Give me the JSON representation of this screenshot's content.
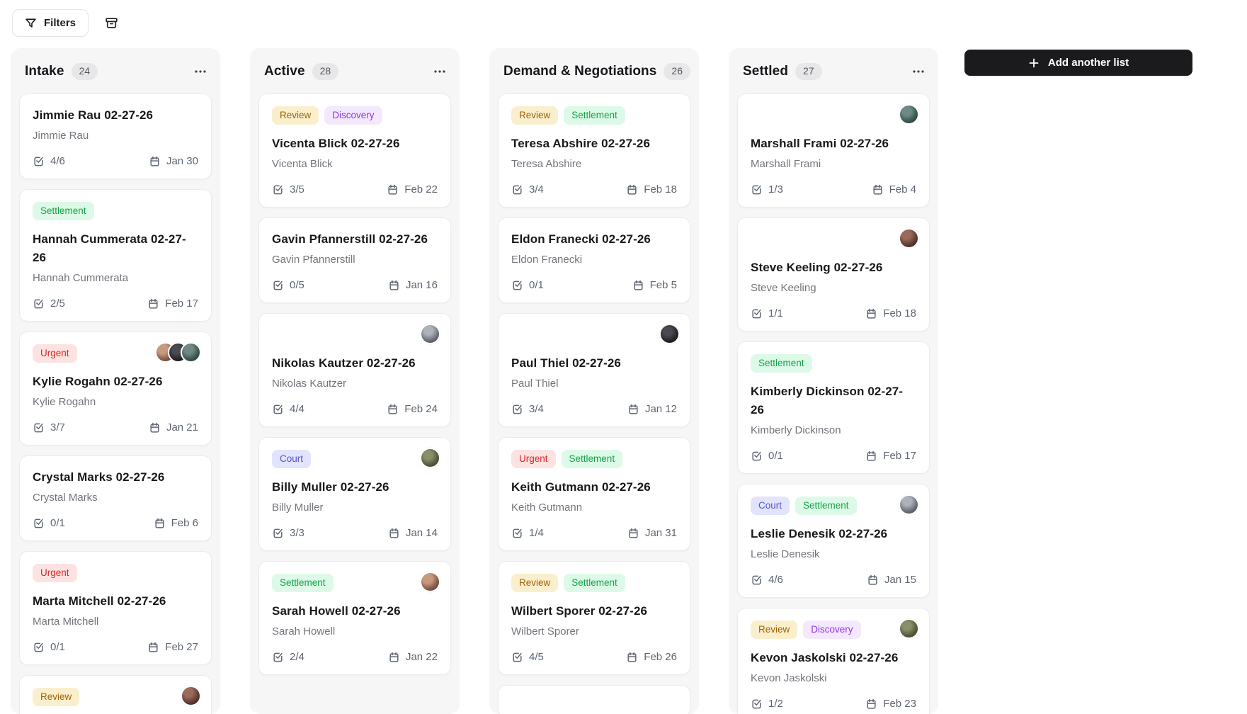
{
  "toolbar": {
    "filters_label": "Filters"
  },
  "board": {
    "add_list_label": "Add another list",
    "columns": [
      {
        "title": "Intake",
        "count": "24",
        "cards": [
          {
            "title": "Jimmie Rau 02-27-26",
            "subtitle": "Jimmie Rau",
            "checklist": "4/6",
            "due": "Jan 30",
            "tags": [],
            "avatars": 0
          },
          {
            "title": "Hannah Cummerata 02-27-26",
            "subtitle": "Hannah Cummerata",
            "checklist": "2/5",
            "due": "Feb 17",
            "tags": [
              "Settlement"
            ],
            "avatars": 0
          },
          {
            "title": "Kylie Rogahn 02-27-26",
            "subtitle": "Kylie Rogahn",
            "checklist": "3/7",
            "due": "Jan 21",
            "tags": [
              "Urgent"
            ],
            "avatars": 3
          },
          {
            "title": "Crystal Marks 02-27-26",
            "subtitle": "Crystal Marks",
            "checklist": "0/1",
            "due": "Feb 6",
            "tags": [],
            "avatars": 0
          },
          {
            "title": "Marta Mitchell 02-27-26",
            "subtitle": "Marta Mitchell",
            "checklist": "0/1",
            "due": "Feb 27",
            "tags": [
              "Urgent"
            ],
            "avatars": 0
          },
          {
            "partial": true,
            "tags": [
              "Review"
            ],
            "avatars": 1
          }
        ]
      },
      {
        "title": "Active",
        "count": "28",
        "cards": [
          {
            "title": "Vicenta Blick 02-27-26",
            "subtitle": "Vicenta Blick",
            "checklist": "3/5",
            "due": "Feb 22",
            "tags": [
              "Review",
              "Discovery"
            ],
            "avatars": 0
          },
          {
            "title": "Gavin Pfannerstill 02-27-26",
            "subtitle": "Gavin Pfannerstill",
            "checklist": "0/5",
            "due": "Jan 16",
            "tags": [],
            "avatars": 0
          },
          {
            "title": "Nikolas Kautzer 02-27-26",
            "subtitle": "Nikolas Kautzer",
            "checklist": "4/4",
            "due": "Feb 24",
            "tags": [],
            "avatars": 1
          },
          {
            "title": "Billy Muller 02-27-26",
            "subtitle": "Billy Muller",
            "checklist": "3/3",
            "due": "Jan 14",
            "tags": [
              "Court"
            ],
            "avatars": 1
          },
          {
            "title": "Sarah Howell 02-27-26",
            "subtitle": "Sarah Howell",
            "checklist": "2/4",
            "due": "Jan 22",
            "tags": [
              "Settlement"
            ],
            "avatars": 1
          }
        ]
      },
      {
        "title": "Demand & Negotiations",
        "count": "26",
        "cards": [
          {
            "title": "Teresa Abshire 02-27-26",
            "subtitle": "Teresa Abshire",
            "checklist": "3/4",
            "due": "Feb 18",
            "tags": [
              "Review",
              "Settlement"
            ],
            "avatars": 0
          },
          {
            "title": "Eldon Franecki 02-27-26",
            "subtitle": "Eldon Franecki",
            "checklist": "0/1",
            "due": "Feb 5",
            "tags": [],
            "avatars": 0
          },
          {
            "title": "Paul Thiel 02-27-26",
            "subtitle": "Paul Thiel",
            "checklist": "3/4",
            "due": "Jan 12",
            "tags": [],
            "avatars": 1
          },
          {
            "title": "Keith Gutmann 02-27-26",
            "subtitle": "Keith Gutmann",
            "checklist": "1/4",
            "due": "Jan 31",
            "tags": [
              "Urgent",
              "Settlement"
            ],
            "avatars": 0
          },
          {
            "title": "Wilbert Sporer 02-27-26",
            "subtitle": "Wilbert Sporer",
            "checklist": "4/5",
            "due": "Feb 26",
            "tags": [
              "Review",
              "Settlement"
            ],
            "avatars": 0
          },
          {
            "sliver": true
          }
        ]
      },
      {
        "title": "Settled",
        "count": "27",
        "cards": [
          {
            "title": "Marshall Frami 02-27-26",
            "subtitle": "Marshall Frami",
            "checklist": "1/3",
            "due": "Feb 4",
            "tags": [],
            "avatars": 1
          },
          {
            "title": "Steve Keeling 02-27-26",
            "subtitle": "Steve Keeling",
            "checklist": "1/1",
            "due": "Feb 18",
            "tags": [],
            "avatars": 1
          },
          {
            "title": "Kimberly Dickinson 02-27-26",
            "subtitle": "Kimberly Dickinson",
            "checklist": "0/1",
            "due": "Feb 17",
            "tags": [
              "Settlement"
            ],
            "avatars": 0
          },
          {
            "title": "Leslie Denesik 02-27-26",
            "subtitle": "Leslie Denesik",
            "checklist": "4/6",
            "due": "Jan 15",
            "tags": [
              "Court",
              "Settlement"
            ],
            "avatars": 1
          },
          {
            "title": "Kevon Jaskolski 02-27-26",
            "subtitle": "Kevon Jaskolski",
            "checklist": "1/2",
            "due": "Feb 23",
            "tags": [
              "Review",
              "Discovery"
            ],
            "avatars": 1
          }
        ]
      }
    ]
  },
  "tag_colors": {
    "Review": {
      "bg": "#faefcd",
      "fg": "#a16207"
    },
    "Discovery": {
      "bg": "#f3e8fd",
      "fg": "#9333ea"
    },
    "Settlement": {
      "bg": "#dcfae7",
      "fg": "#16a34a"
    },
    "Urgent": {
      "bg": "#fde2e2",
      "fg": "#dc2626"
    },
    "Court": {
      "bg": "#e2e3fc",
      "fg": "#5457d6"
    }
  },
  "colors": {
    "add_list_bg": "#1b1b1e",
    "column_bg": "#f6f6f7",
    "icon_gray": "#5e6673"
  }
}
